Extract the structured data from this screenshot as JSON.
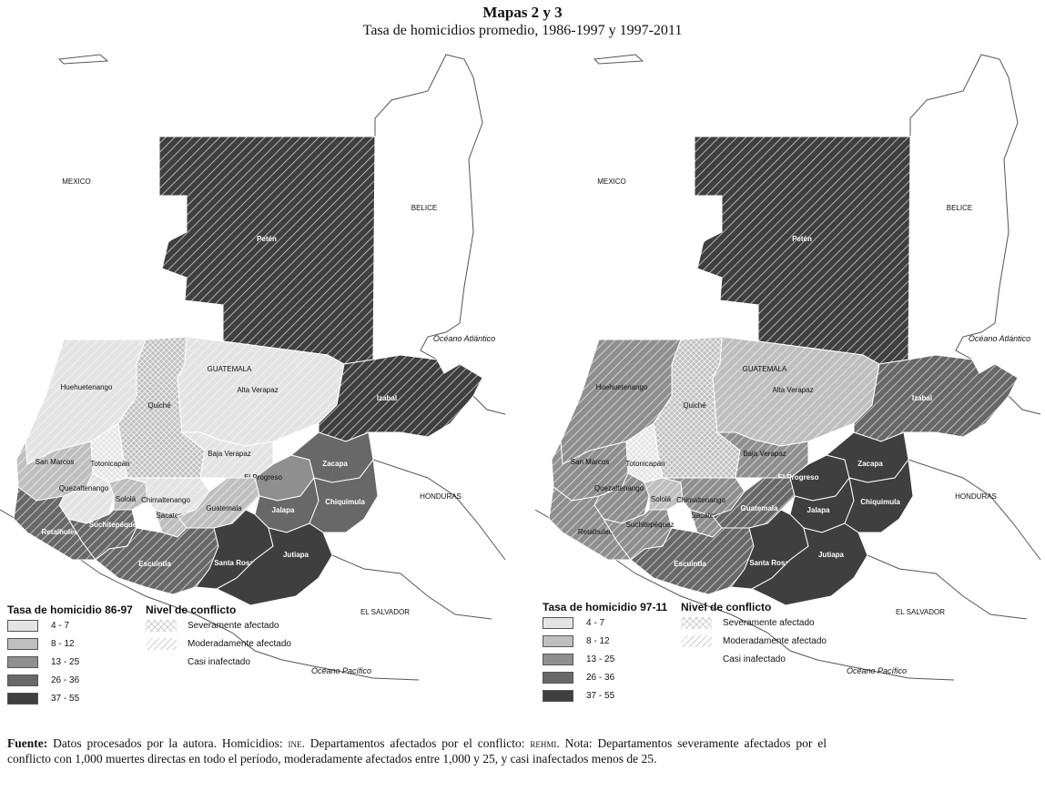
{
  "title": "Mapas 2 y 3",
  "subtitle": "Tasa de homicidios promedio, 1986-1997 y 1997-2011",
  "countries": {
    "mexico": "MEXICO",
    "belice": "BELICE",
    "honduras": "HONDURAS",
    "el_salvador": "EL SALVADOR",
    "guatemala": "GUATEMALA"
  },
  "oceans": {
    "atlantico": "Océano Atlántico",
    "pacifico": "Océano Pacífico"
  },
  "colors": {
    "c1": "#e4e4e4",
    "c2": "#bfbfbf",
    "c3": "#8f8f8f",
    "c4": "#686868",
    "c5": "#3f3f3f"
  },
  "departments": [
    "Petén",
    "Huehuetenango",
    "Quiché",
    "Alta Verapaz",
    "Izabal",
    "San Marcos",
    "Totonicapán",
    "Baja Verapaz",
    "Quezaltenango",
    "Sololá",
    "Chimaltenango",
    "El Progreso",
    "Zacapa",
    "Retalhuleu",
    "Suchitepéquez",
    "Sacatepéquez",
    "Guatemala",
    "Jalapa",
    "Chiquimula",
    "Escuintla",
    "Santa Rosa",
    "Jutiapa"
  ],
  "maps": [
    {
      "legend_title": "Tasa de homicidio 86-97",
      "classes": [
        "4 - 7",
        "8 - 12",
        "13 - 25",
        "26 - 36",
        "37 - 55"
      ],
      "conflict_title": "Nivel de conflicto",
      "conflict_levels": [
        "Severamente afectado",
        "Moderadamente afectado",
        "Casi inafectado"
      ],
      "rate_class": {
        "Petén": 5,
        "Huehuetenango": 1,
        "Quiché": 2,
        "Alta Verapaz": 1,
        "Izabal": 5,
        "San Marcos": 2,
        "Totonicapán": 1,
        "Baja Verapaz": 1,
        "Quezaltenango": 1,
        "Sololá": 2,
        "Chimaltenango": 1,
        "El Progreso": 3,
        "Zacapa": 4,
        "Retalhuleu": 4,
        "Suchitepéquez": 4,
        "Sacatepéquez": 2,
        "Guatemala": 2,
        "Jalapa": 4,
        "Chiquimula": 4,
        "Escuintla": 4,
        "Santa Rosa": 5,
        "Jutiapa": 5
      }
    },
    {
      "legend_title": "Tasa de homicidio 97-11",
      "classes": [
        "4 - 7",
        "8 - 12",
        "13 - 25",
        "26 - 36",
        "37 - 55"
      ],
      "conflict_title": "Nivel de conflicto",
      "conflict_levels": [
        "Severamente afectado",
        "Moderadamente afectado",
        "Casi inafectado"
      ],
      "rate_class": {
        "Petén": 5,
        "Huehuetenango": 3,
        "Quiché": 2,
        "Alta Verapaz": 2,
        "Izabal": 4,
        "San Marcos": 3,
        "Totonicapán": 1,
        "Baja Verapaz": 3,
        "Quezaltenango": 3,
        "Sololá": 2,
        "Chimaltenango": 3,
        "El Progreso": 5,
        "Zacapa": 5,
        "Retalhuleu": 3,
        "Suchitepéquez": 3,
        "Sacatepéquez": 3,
        "Guatemala": 4,
        "Jalapa": 5,
        "Chiquimula": 5,
        "Escuintla": 4,
        "Santa Rosa": 5,
        "Jutiapa": 5
      }
    }
  ],
  "conflict_by_department": {
    "Petén": "moderate",
    "Huehuetenango": "moderate",
    "Quiché": "severe",
    "Alta Verapaz": "moderate",
    "Izabal": "moderate",
    "San Marcos": "moderate",
    "Totonicapán": "severe",
    "Baja Verapaz": "moderate",
    "Quezaltenango": "moderate",
    "Sololá": "moderate",
    "Chimaltenango": "moderate",
    "El Progreso": "none",
    "Zacapa": "none",
    "Retalhuleu": "moderate",
    "Suchitepéquez": "moderate",
    "Sacatepéquez": "moderate",
    "Guatemala": "moderate",
    "Jalapa": "none",
    "Chiquimula": "none",
    "Escuintla": "moderate",
    "Santa Rosa": "none",
    "Jutiapa": "none"
  },
  "footer": {
    "label": "Fuente:",
    "text1": " Datos procesados por la autora. Homicidios: ",
    "ine": "ine",
    "text2": ". Departamentos afectados por el conflicto: ",
    "rehmi": "rehmi",
    "text3": ". Nota: Departamentos severamente afectados por el conflicto con 1,000 muertes directas en todo el período, moderadamente afectados entre 1,000 y 25, y casi inafectados menos de 25."
  }
}
